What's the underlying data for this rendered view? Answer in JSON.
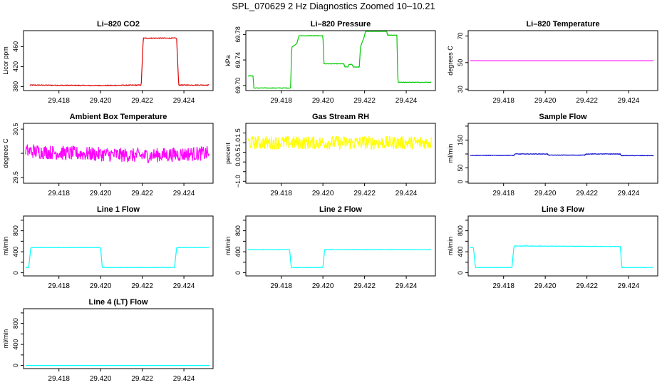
{
  "page": {
    "title": "SPL_070629  2 Hz Diagnostics Zoomed 10–10.21"
  },
  "chart_data": [
    {
      "type": "line",
      "title": "Li–820 CO2",
      "xlabel": "",
      "ylabel": "Licor ppm",
      "xlim": [
        29.4163,
        29.4254
      ],
      "ylim": [
        372,
        492
      ],
      "xticks": [
        29.418,
        29.42,
        29.422,
        29.424
      ],
      "xtick_labels": [
        "29.418",
        "29.420",
        "29.422",
        "29.424"
      ],
      "yticks": [
        380,
        420,
        460
      ],
      "ytick_labels": [
        "380",
        "420",
        "460"
      ],
      "color": "#dd0000",
      "noise": 0.8,
      "series": [
        {
          "x": [
            29.4166,
            29.42,
            29.42195,
            29.42205,
            29.42365,
            29.42375,
            29.4252
          ],
          "values": [
            383,
            382,
            383,
            477,
            477,
            383,
            383
          ]
        }
      ]
    },
    {
      "type": "line",
      "title": "Li–820 Pressure",
      "xlabel": "",
      "ylabel": "kPa",
      "xlim": [
        29.4163,
        29.4254
      ],
      "ylim": [
        69.692,
        69.786
      ],
      "xticks": [
        29.418,
        29.42,
        29.422,
        29.424
      ],
      "xtick_labels": [
        "29.418",
        "29.420",
        "29.422",
        "29.424"
      ],
      "yticks": [
        69.7,
        69.74,
        69.78
      ],
      "ytick_labels": [
        "69.70",
        "69.74",
        "69.78"
      ],
      "color": "#00cc00",
      "noise": 0.0004,
      "series": [
        {
          "x": [
            29.4164,
            29.41665,
            29.41668,
            29.41845,
            29.4185,
            29.41875,
            29.41885,
            29.42,
            29.42005,
            29.421,
            29.42105,
            29.4212,
            29.42125,
            29.4214,
            29.42145,
            29.42175,
            29.4218,
            29.422,
            29.42205,
            29.42305,
            29.4231,
            29.42355,
            29.4236,
            29.4252
          ],
          "values": [
            69.715,
            69.715,
            69.696,
            69.696,
            69.76,
            69.766,
            69.778,
            69.778,
            69.734,
            69.734,
            69.729,
            69.729,
            69.733,
            69.733,
            69.729,
            69.729,
            69.76,
            69.778,
            69.787,
            69.787,
            69.779,
            69.779,
            69.705,
            69.705
          ]
        }
      ]
    },
    {
      "type": "line",
      "title": "Li–820 Temperature",
      "xlabel": "",
      "ylabel": "degrees C",
      "xlim": [
        29.4163,
        29.4254
      ],
      "ylim": [
        29,
        74
      ],
      "xticks": [
        29.418,
        29.42,
        29.422,
        29.424
      ],
      "xtick_labels": [
        "29.418",
        "29.420",
        "29.422",
        "29.424"
      ],
      "yticks": [
        30,
        50,
        70
      ],
      "ytick_labels": [
        "30",
        "50",
        "70"
      ],
      "color": "#ff00ff",
      "noise": 0,
      "series": [
        {
          "x": [
            29.4164,
            29.4252
          ],
          "values": [
            51.4,
            51.4
          ]
        }
      ]
    },
    {
      "type": "line",
      "title": "Ambient Box Temperature",
      "xlabel": "",
      "ylabel": "degrees C",
      "xlim": [
        29.4163,
        29.4254
      ],
      "ylim": [
        29.38,
        30.62
      ],
      "xticks": [
        29.418,
        29.42,
        29.422,
        29.424
      ],
      "xtick_labels": [
        "29.418",
        "29.420",
        "29.422",
        "29.424"
      ],
      "yticks": [
        29.5,
        30.0,
        30.5
      ],
      "ytick_labels": [
        "29.5",
        "",
        "30.5"
      ],
      "color": "#ff00ff",
      "noise": 0.15,
      "series": [
        {
          "x": [
            29.4164,
            29.4185,
            29.42,
            29.422,
            29.4252
          ],
          "values": [
            30.05,
            30.0,
            29.98,
            29.95,
            30.0
          ]
        }
      ]
    },
    {
      "type": "line",
      "title": "Gas Stream RH",
      "xlabel": "",
      "ylabel": "percent",
      "xlim": [
        29.4163,
        29.4254
      ],
      "ylim": [
        -1.1,
        2.0
      ],
      "xticks": [
        29.418,
        29.42,
        29.422,
        29.424
      ],
      "xtick_labels": [
        "29.418",
        "29.420",
        "29.422",
        "29.424"
      ],
      "yticks": [
        -1.0,
        -0.5,
        0.0,
        0.5,
        1.0,
        1.5
      ],
      "ytick_labels": [
        "−1.0",
        "",
        "0.0",
        "0.5",
        "1.0",
        "1.5"
      ],
      "color": "#ffff00",
      "noise": 0.35,
      "series": [
        {
          "x": [
            29.4164,
            29.4252
          ],
          "values": [
            1.0,
            1.0
          ]
        }
      ]
    },
    {
      "type": "line",
      "title": "Sample Flow",
      "xlabel": "",
      "ylabel": "ml/min",
      "xlim": [
        29.4163,
        29.4254
      ],
      "ylim": [
        -5,
        210
      ],
      "xticks": [
        29.418,
        29.42,
        29.422,
        29.424
      ],
      "xtick_labels": [
        "29.418",
        "29.420",
        "29.422",
        "29.424"
      ],
      "yticks": [
        0,
        50,
        100,
        150,
        200
      ],
      "ytick_labels": [
        "0",
        "50",
        "",
        "150",
        ""
      ],
      "color": "#0000cc",
      "noise": 0.8,
      "series": [
        {
          "x": [
            29.4164,
            29.4185,
            29.41855,
            29.4201,
            29.42015,
            29.4219,
            29.42195,
            29.4236,
            29.42365,
            29.4252
          ],
          "values": [
            95,
            95,
            100,
            100,
            96,
            96,
            100,
            100,
            94,
            94
          ]
        }
      ]
    },
    {
      "type": "line",
      "title": "Line 1 Flow",
      "xlabel": "",
      "ylabel": "ml/min",
      "xlim": [
        29.4163,
        29.4254
      ],
      "ylim": [
        -60,
        1080
      ],
      "xticks": [
        29.418,
        29.42,
        29.422,
        29.424
      ],
      "xtick_labels": [
        "29.418",
        "29.420",
        "29.422",
        "29.424"
      ],
      "yticks": [
        0,
        200,
        400,
        600,
        800,
        1000
      ],
      "ytick_labels": [
        "0",
        "",
        "400",
        "",
        "800",
        ""
      ],
      "color": "#00ffff",
      "noise": 3,
      "series": [
        {
          "x": [
            29.4164,
            29.41655,
            29.41665,
            29.42,
            29.42008,
            29.42355,
            29.42365,
            29.4252
          ],
          "values": [
            100,
            100,
            480,
            480,
            100,
            100,
            480,
            480
          ]
        }
      ]
    },
    {
      "type": "line",
      "title": "Line 2 Flow",
      "xlabel": "",
      "ylabel": "ml/min",
      "xlim": [
        29.4163,
        29.4254
      ],
      "ylim": [
        -60,
        1080
      ],
      "xticks": [
        29.418,
        29.42,
        29.422,
        29.424
      ],
      "xtick_labels": [
        "29.418",
        "29.420",
        "29.422",
        "29.424"
      ],
      "yticks": [
        0,
        200,
        400,
        600,
        800,
        1000
      ],
      "ytick_labels": [
        "0",
        "",
        "400",
        "",
        "800",
        ""
      ],
      "color": "#00ffff",
      "noise": 3,
      "series": [
        {
          "x": [
            29.4164,
            29.4184,
            29.41848,
            29.42,
            29.42008,
            29.4252
          ],
          "values": [
            440,
            440,
            100,
            100,
            440,
            440
          ]
        }
      ]
    },
    {
      "type": "line",
      "title": "Line 3 Flow",
      "xlabel": "",
      "ylabel": "ml/min",
      "xlim": [
        29.4163,
        29.4254
      ],
      "ylim": [
        -60,
        1080
      ],
      "xticks": [
        29.418,
        29.42,
        29.422,
        29.424
      ],
      "xtick_labels": [
        "29.418",
        "29.420",
        "29.422",
        "29.424"
      ],
      "yticks": [
        0,
        200,
        400,
        600,
        800,
        1000
      ],
      "ytick_labels": [
        "0",
        "",
        "400",
        "",
        "800",
        ""
      ],
      "color": "#00ffff",
      "noise": 3,
      "series": [
        {
          "x": [
            29.4164,
            29.41655,
            29.41665,
            29.4184,
            29.4185,
            29.4236,
            29.42368,
            29.4252
          ],
          "values": [
            480,
            480,
            100,
            100,
            510,
            500,
            100,
            100
          ]
        }
      ]
    },
    {
      "type": "line",
      "title": "Line 4 (LT) Flow",
      "xlabel": "",
      "ylabel": "ml/min",
      "xlim": [
        29.4163,
        29.4254
      ],
      "ylim": [
        -60,
        1080
      ],
      "xticks": [
        29.418,
        29.42,
        29.422,
        29.424
      ],
      "xtick_labels": [
        "29.418",
        "29.420",
        "29.422",
        "29.424"
      ],
      "yticks": [
        0,
        200,
        400,
        600,
        800,
        1000
      ],
      "ytick_labels": [
        "0",
        "",
        "400",
        "",
        "800",
        ""
      ],
      "color": "#00ffff",
      "noise": 0.5,
      "series": [
        {
          "x": [
            29.4164,
            29.4252
          ],
          "values": [
            0,
            0
          ]
        }
      ]
    }
  ]
}
